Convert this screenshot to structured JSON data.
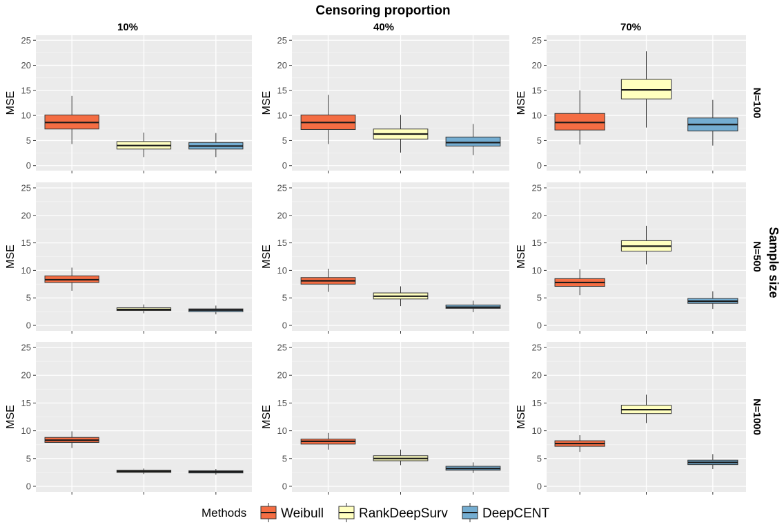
{
  "chart_data": {
    "type": "boxplot",
    "title": "Censoring proportion",
    "column_facets": [
      "10%",
      "40%",
      "70%"
    ],
    "row_title": "Sample size",
    "row_facets": [
      "N=100",
      "N=500",
      "N=1000"
    ],
    "ylabel": "MSE",
    "ylim": [
      -1,
      26
    ],
    "yticks": [
      0,
      5,
      10,
      15,
      20,
      25
    ],
    "legend": {
      "title": "Methods",
      "position": "bottom",
      "entries": [
        {
          "name": "Weibull",
          "color": "#f46d43"
        },
        {
          "name": "RankDeepSurv",
          "color": "#ffffbf"
        },
        {
          "name": "DeepCENT",
          "color": "#74add1"
        }
      ]
    },
    "panels": [
      {
        "row": "N=100",
        "col": "10%",
        "boxes": [
          {
            "method": "Weibull",
            "min": 4.3,
            "q1": 7.3,
            "median": 8.6,
            "q3": 10.1,
            "max": 13.9
          },
          {
            "method": "RankDeepSurv",
            "min": 1.7,
            "q1": 3.3,
            "median": 4.0,
            "q3": 4.8,
            "max": 6.6
          },
          {
            "method": "DeepCENT",
            "min": 1.7,
            "q1": 3.3,
            "median": 3.9,
            "q3": 4.6,
            "max": 6.5
          }
        ]
      },
      {
        "row": "N=100",
        "col": "40%",
        "boxes": [
          {
            "method": "Weibull",
            "min": 4.3,
            "q1": 7.2,
            "median": 8.6,
            "q3": 10.1,
            "max": 14.1
          },
          {
            "method": "RankDeepSurv",
            "min": 2.6,
            "q1": 5.3,
            "median": 6.3,
            "q3": 7.3,
            "max": 10.1
          },
          {
            "method": "DeepCENT",
            "min": 2.1,
            "q1": 3.9,
            "median": 4.6,
            "q3": 5.7,
            "max": 8.3
          }
        ]
      },
      {
        "row": "N=100",
        "col": "70%",
        "boxes": [
          {
            "method": "Weibull",
            "min": 4.2,
            "q1": 7.1,
            "median": 8.6,
            "q3": 10.4,
            "max": 15.0
          },
          {
            "method": "RankDeepSurv",
            "min": 7.6,
            "q1": 13.3,
            "median": 15.1,
            "q3": 17.2,
            "max": 22.8
          },
          {
            "method": "DeepCENT",
            "min": 4.0,
            "q1": 6.9,
            "median": 8.2,
            "q3": 9.5,
            "max": 13.1
          }
        ]
      },
      {
        "row": "N=500",
        "col": "10%",
        "boxes": [
          {
            "method": "Weibull",
            "min": 6.3,
            "q1": 7.8,
            "median": 8.3,
            "q3": 9.0,
            "max": 10.5
          },
          {
            "method": "RankDeepSurv",
            "min": 2.2,
            "q1": 2.7,
            "median": 2.9,
            "q3": 3.2,
            "max": 3.8
          },
          {
            "method": "DeepCENT",
            "min": 2.0,
            "q1": 2.5,
            "median": 2.8,
            "q3": 3.0,
            "max": 3.6
          }
        ]
      },
      {
        "row": "N=500",
        "col": "40%",
        "boxes": [
          {
            "method": "Weibull",
            "min": 6.1,
            "q1": 7.5,
            "median": 8.1,
            "q3": 8.7,
            "max": 10.3
          },
          {
            "method": "RankDeepSurv",
            "min": 3.5,
            "q1": 4.8,
            "median": 5.3,
            "q3": 5.9,
            "max": 7.1
          },
          {
            "method": "DeepCENT",
            "min": 2.4,
            "q1": 3.1,
            "median": 3.3,
            "q3": 3.7,
            "max": 4.5
          }
        ]
      },
      {
        "row": "N=500",
        "col": "70%",
        "boxes": [
          {
            "method": "Weibull",
            "min": 5.5,
            "q1": 7.1,
            "median": 7.8,
            "q3": 8.5,
            "max": 10.2
          },
          {
            "method": "RankDeepSurv",
            "min": 11.1,
            "q1": 13.5,
            "median": 14.4,
            "q3": 15.4,
            "max": 18.1
          },
          {
            "method": "DeepCENT",
            "min": 3.0,
            "q1": 4.0,
            "median": 4.4,
            "q3": 4.9,
            "max": 6.2
          }
        ]
      },
      {
        "row": "N=1000",
        "col": "10%",
        "boxes": [
          {
            "method": "Weibull",
            "min": 6.9,
            "q1": 7.9,
            "median": 8.3,
            "q3": 8.8,
            "max": 9.9
          },
          {
            "method": "RankDeepSurv",
            "min": 2.2,
            "q1": 2.5,
            "median": 2.7,
            "q3": 2.9,
            "max": 3.2
          },
          {
            "method": "DeepCENT",
            "min": 2.1,
            "q1": 2.4,
            "median": 2.6,
            "q3": 2.8,
            "max": 3.1
          }
        ]
      },
      {
        "row": "N=1000",
        "col": "40%",
        "boxes": [
          {
            "method": "Weibull",
            "min": 6.6,
            "q1": 7.6,
            "median": 8.1,
            "q3": 8.5,
            "max": 9.6
          },
          {
            "method": "RankDeepSurv",
            "min": 3.8,
            "q1": 4.6,
            "median": 5.0,
            "q3": 5.5,
            "max": 6.6
          },
          {
            "method": "DeepCENT",
            "min": 2.4,
            "q1": 2.9,
            "median": 3.2,
            "q3": 3.6,
            "max": 4.3
          }
        ]
      },
      {
        "row": "N=1000",
        "col": "70%",
        "boxes": [
          {
            "method": "Weibull",
            "min": 6.2,
            "q1": 7.2,
            "median": 7.7,
            "q3": 8.2,
            "max": 9.2
          },
          {
            "method": "RankDeepSurv",
            "min": 11.4,
            "q1": 13.1,
            "median": 13.8,
            "q3": 14.6,
            "max": 16.5
          },
          {
            "method": "DeepCENT",
            "min": 3.1,
            "q1": 3.9,
            "median": 4.3,
            "q3": 4.7,
            "max": 5.8
          }
        ]
      }
    ]
  }
}
